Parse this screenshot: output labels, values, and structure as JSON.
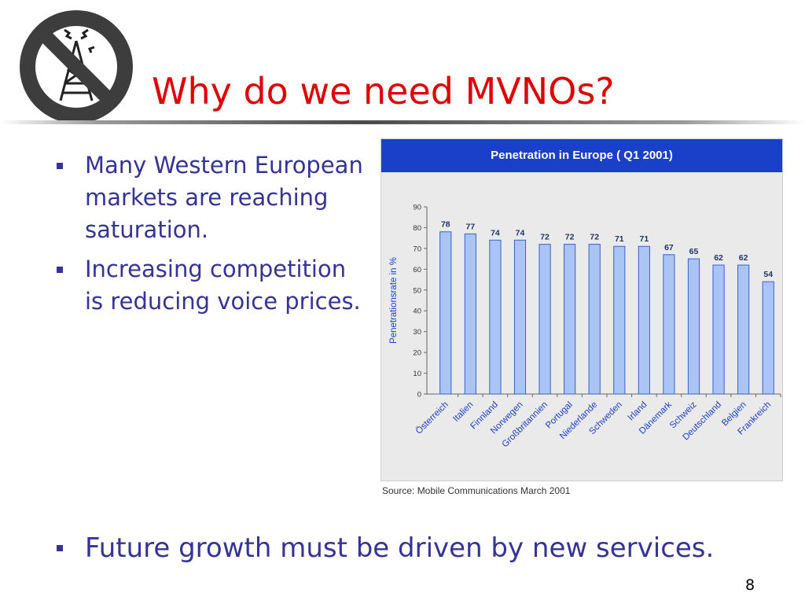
{
  "slide": {
    "title": "Why do we need MVNOs?",
    "page_number": "8",
    "bullets": [
      "Many Western European markets are reaching saturation.",
      "Increasing competition is reducing voice prices."
    ],
    "bottom_bullet": "Future growth must be driven by new services."
  },
  "logo": {
    "icon": "no-antenna-sign-icon"
  },
  "colors": {
    "title": "#e00000",
    "body_text": "#333399",
    "bullet": "#333399",
    "chart_header": "#1a3fc8",
    "bar_fill": "#a9c4f5",
    "bar_stroke": "#3a62c8",
    "chart_background": "#eaeaea",
    "value_label": "#223366"
  },
  "chart_data": {
    "type": "bar",
    "title": "Penetration in Europe ( Q1 2001)",
    "ylabel": "Penetrationsrate in %",
    "xlabel": "",
    "ylim": [
      0,
      90
    ],
    "yticks": [
      0,
      10,
      20,
      30,
      40,
      50,
      60,
      70,
      80,
      90
    ],
    "categories": [
      "Österreich",
      "Italien",
      "Finnland",
      "Norwegen",
      "Großbritannien",
      "Portugal",
      "Niederlande",
      "Schweden",
      "Irland",
      "Dänemark",
      "Schweiz",
      "Deutschland",
      "Belgien",
      "Frankreich"
    ],
    "values": [
      78,
      77,
      74,
      74,
      72,
      72,
      72,
      71,
      71,
      67,
      65,
      62,
      62,
      54
    ],
    "grid": false,
    "source": "Source: Mobile Communications March 2001"
  }
}
